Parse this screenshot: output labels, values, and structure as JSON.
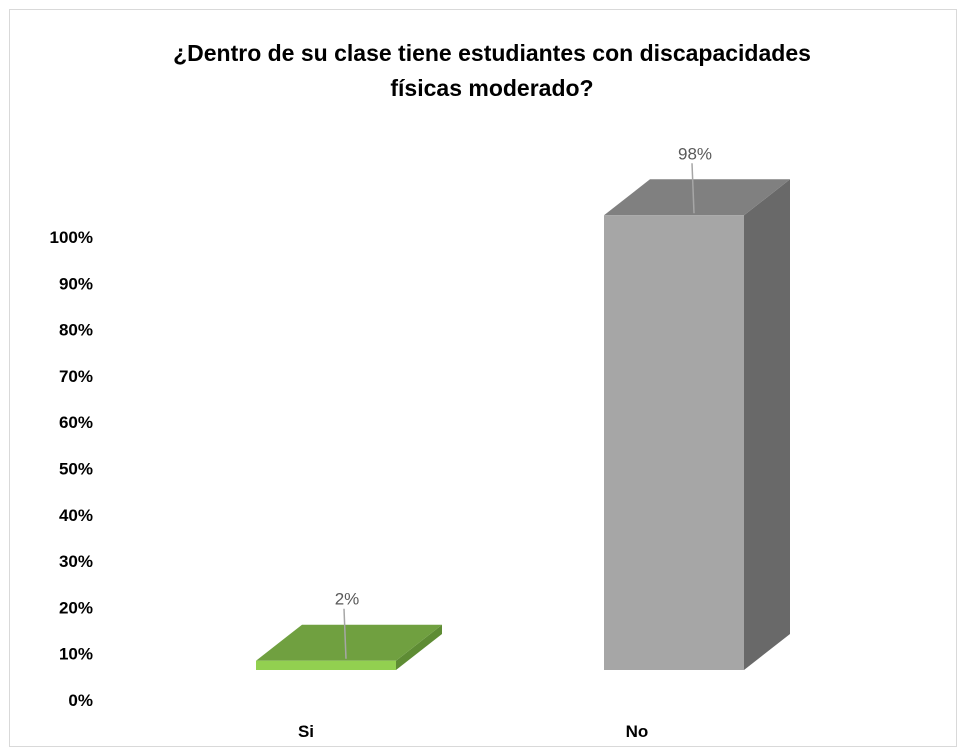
{
  "chart_data": {
    "type": "bar",
    "title_lines": [
      "¿Dentro de su clase tiene estudiantes con discapacidades",
      "físicas moderado?"
    ],
    "categories": [
      "Si",
      "No"
    ],
    "values": [
      2,
      98
    ],
    "data_labels": [
      "2%",
      "98%"
    ],
    "y_ticks": [
      "0%",
      "10%",
      "20%",
      "30%",
      "40%",
      "50%",
      "60%",
      "70%",
      "80%",
      "90%",
      "100%"
    ],
    "ylim": [
      0,
      100
    ],
    "grid": false,
    "colors": {
      "Si": {
        "front": "#92d050",
        "top": "#70a040",
        "side": "#5e8c34"
      },
      "No": {
        "front": "#a6a6a6",
        "top": "#808080",
        "side": "#696969"
      }
    }
  }
}
